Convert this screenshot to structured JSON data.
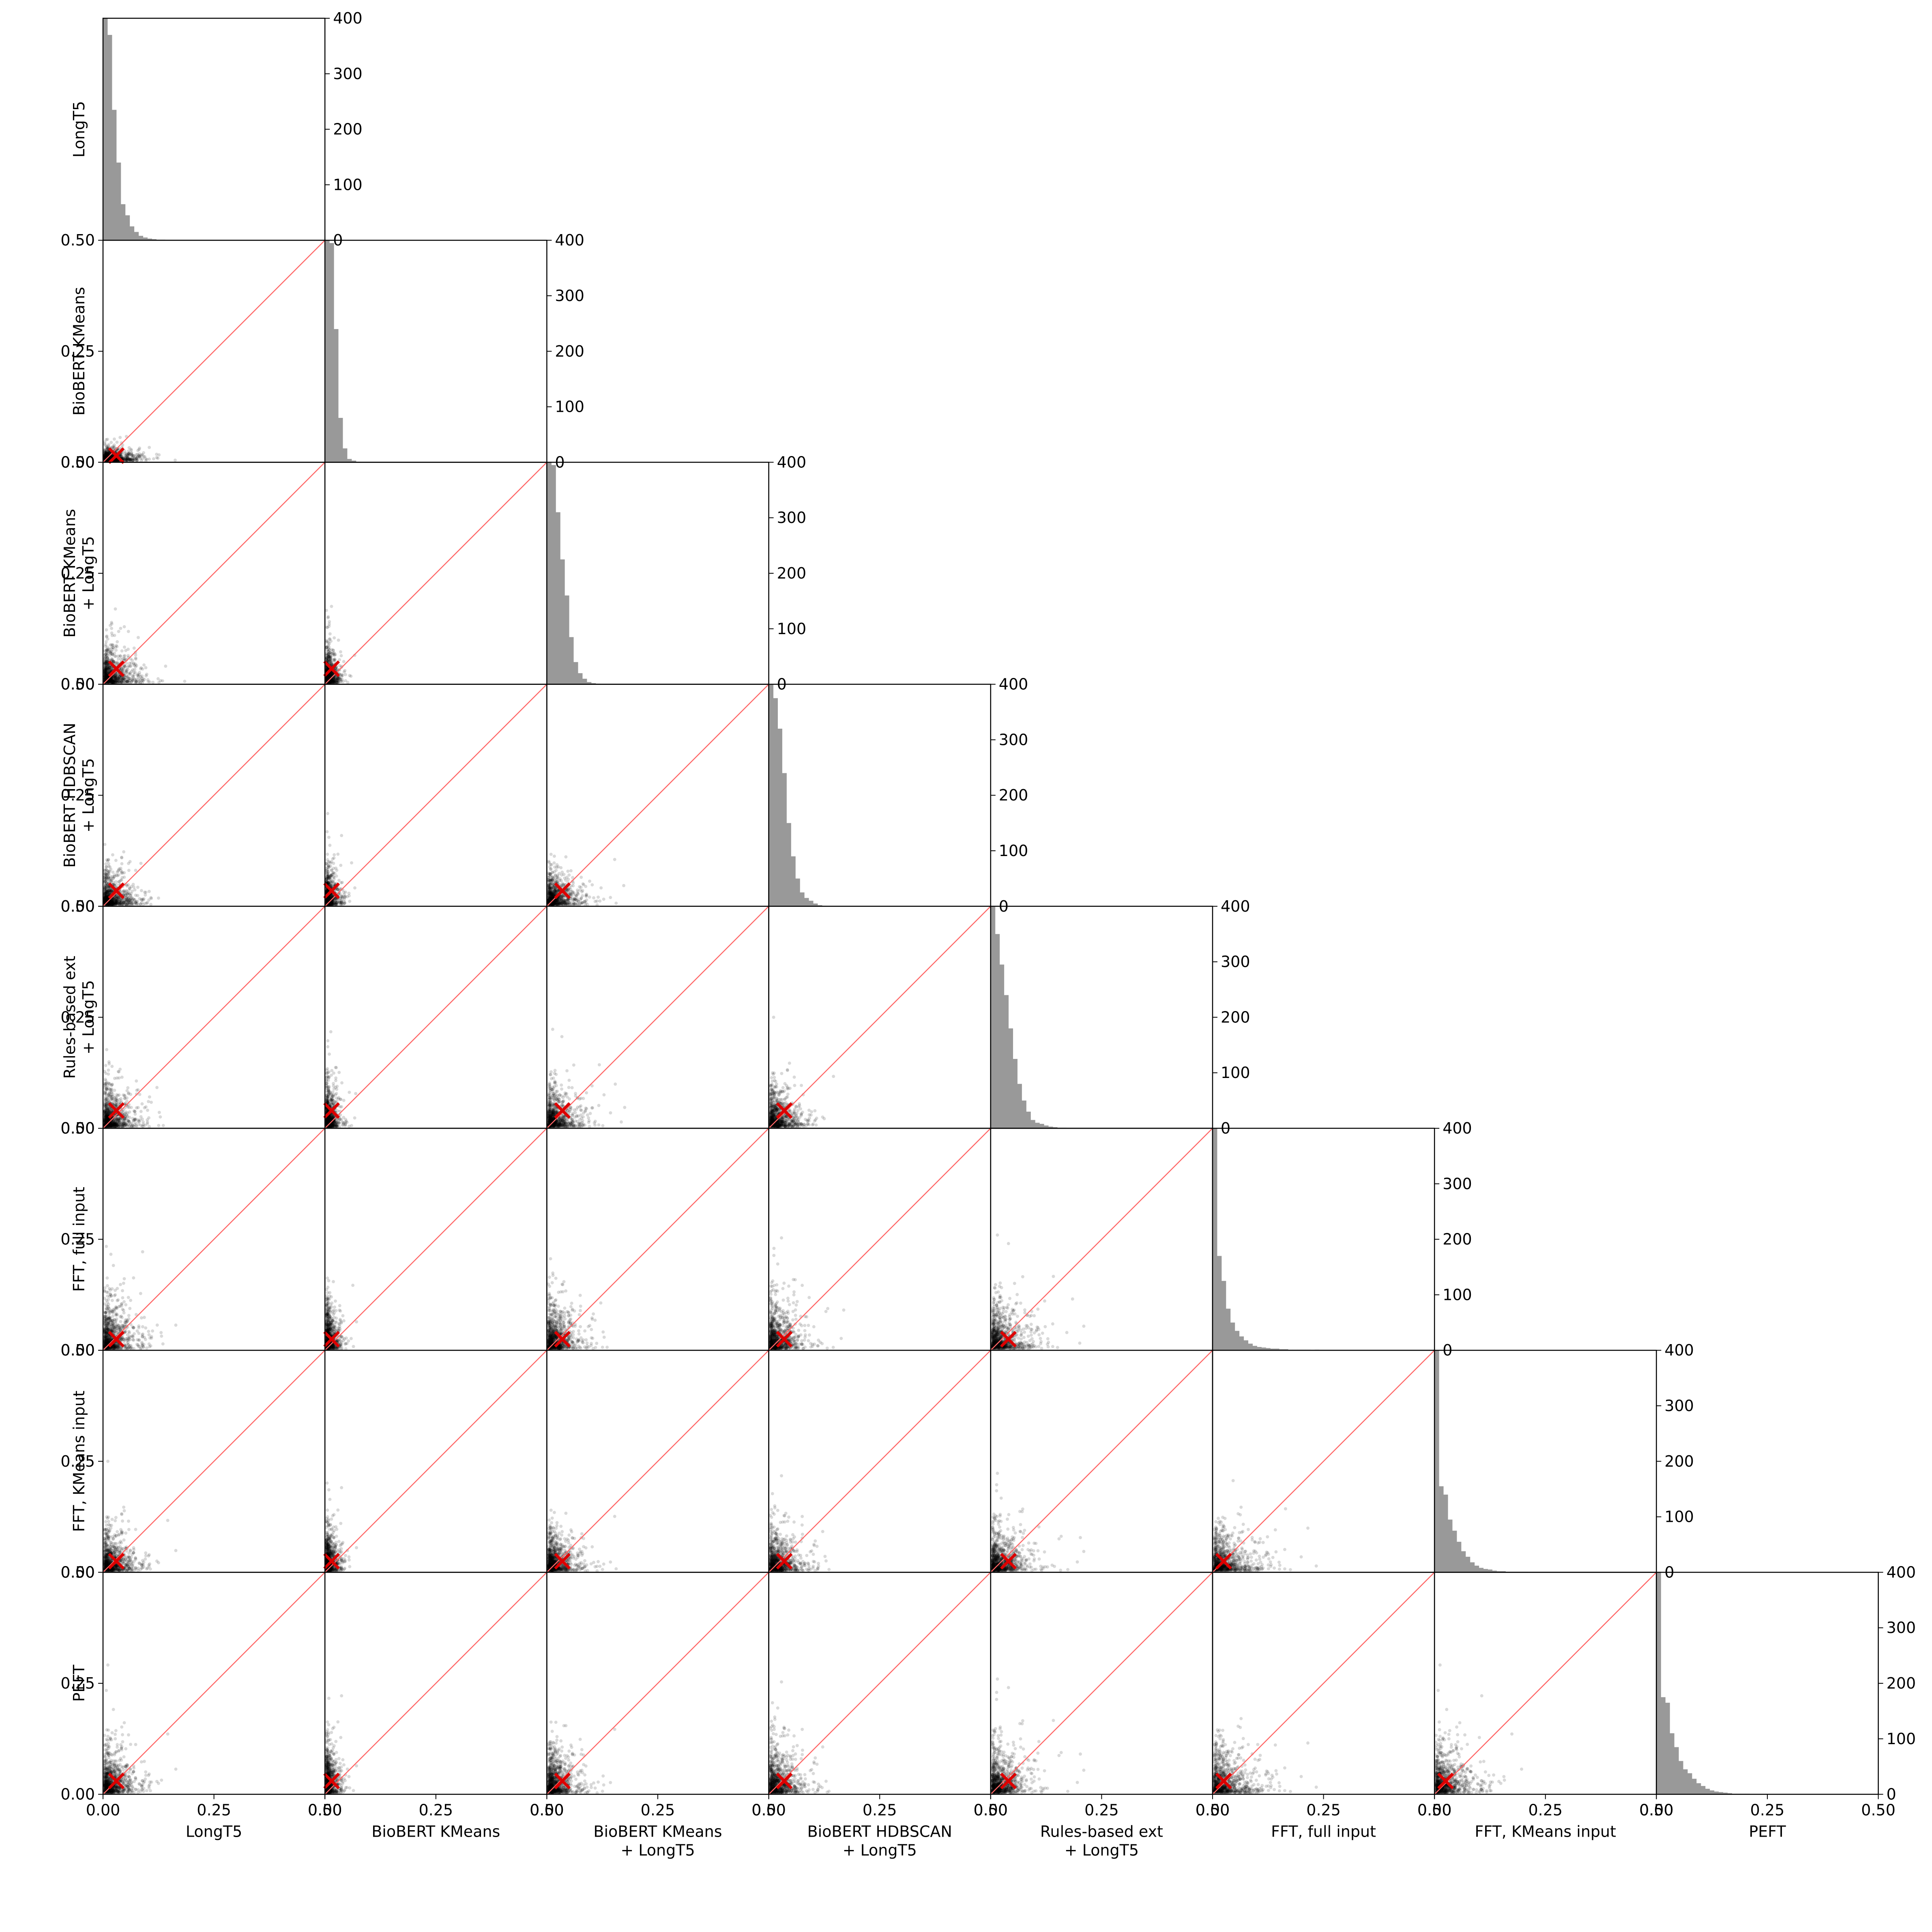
{
  "chart_data": {
    "type": "scatter",
    "layout": "lower-triangular pair plot: scatter panels below diagonal, histograms on diagonal",
    "variables": [
      "LongT5",
      "BioBERT KMeans",
      "BioBERT KMeans\n+ LongT5",
      "BioBERT HDBSCAN\n+ LongT5",
      "Rules-based ext\n+ LongT5",
      "FFT, full input",
      "FFT, KMeans input",
      "PEFT"
    ],
    "axis_range": [
      0,
      0.5
    ],
    "axis_ticks": [
      "0.00",
      "0.25",
      "0.50"
    ],
    "scatter": {
      "point_color": "#000000",
      "point_alpha": 0.15,
      "reference_line": {
        "from": [
          0,
          0
        ],
        "to": [
          0.5,
          0.5
        ],
        "color": "#ff6666"
      },
      "mean_marker": {
        "symbol": "x",
        "color": "#dd0000"
      }
    },
    "histogram": {
      "color": "#999999",
      "ylim": [
        0,
        400
      ],
      "y_ticks": [
        "0",
        "100",
        "200",
        "300",
        "400"
      ],
      "bin_width": 0.01,
      "series": [
        {
          "values": [
            400,
            370,
            235,
            140,
            65,
            45,
            25,
            15,
            8,
            5,
            3,
            2,
            1,
            1,
            0,
            0,
            0,
            0,
            0,
            0,
            0,
            0,
            0,
            0,
            0,
            0,
            0,
            0,
            0,
            0,
            0,
            0,
            0,
            0,
            0,
            0,
            0,
            0,
            0,
            0,
            0,
            0,
            0,
            0,
            0,
            0,
            0,
            0,
            0,
            0
          ]
        },
        {
          "values": [
            400,
            395,
            240,
            80,
            25,
            6,
            3,
            1,
            0,
            0,
            0,
            0,
            0,
            0,
            0,
            0,
            0,
            0,
            0,
            0,
            0,
            0,
            0,
            0,
            0,
            0,
            0,
            0,
            0,
            0,
            0,
            0,
            0,
            0,
            0,
            0,
            0,
            0,
            0,
            0,
            0,
            0,
            0,
            0,
            0,
            0,
            0,
            0,
            0,
            0
          ]
        },
        {
          "values": [
            400,
            395,
            310,
            225,
            160,
            85,
            40,
            20,
            10,
            4,
            2,
            1,
            0,
            0,
            0,
            0,
            0,
            0,
            0,
            0,
            0,
            0,
            0,
            0,
            0,
            0,
            0,
            0,
            0,
            0,
            0,
            0,
            0,
            0,
            0,
            0,
            0,
            0,
            0,
            0,
            0,
            0,
            0,
            0,
            0,
            0,
            0,
            0,
            0,
            0
          ]
        },
        {
          "values": [
            400,
            375,
            320,
            240,
            150,
            90,
            50,
            25,
            15,
            10,
            5,
            2,
            1,
            0,
            0,
            0,
            0,
            0,
            0,
            0,
            0,
            0,
            0,
            0,
            0,
            0,
            0,
            0,
            0,
            0,
            0,
            0,
            0,
            0,
            0,
            0,
            0,
            0,
            0,
            0,
            0,
            0,
            0,
            0,
            0,
            0,
            0,
            0,
            0,
            0
          ]
        },
        {
          "values": [
            400,
            350,
            295,
            240,
            180,
            125,
            80,
            50,
            30,
            15,
            10,
            8,
            5,
            3,
            2,
            1,
            1,
            0,
            0,
            0,
            0,
            0,
            0,
            0,
            0,
            0,
            0,
            0,
            0,
            0,
            0,
            0,
            0,
            0,
            0,
            0,
            0,
            0,
            0,
            0,
            0,
            0,
            0,
            0,
            0,
            0,
            0,
            0,
            0,
            0
          ]
        },
        {
          "values": [
            400,
            170,
            125,
            75,
            50,
            35,
            25,
            18,
            12,
            8,
            6,
            5,
            4,
            3,
            3,
            2,
            2,
            1,
            1,
            1,
            1,
            1,
            0,
            1,
            0,
            0,
            0,
            0,
            0,
            0,
            0,
            0,
            0,
            0,
            0,
            0,
            0,
            0,
            0,
            0,
            0,
            0,
            0,
            0,
            0,
            0,
            0,
            0,
            0,
            0
          ]
        },
        {
          "values": [
            400,
            155,
            140,
            95,
            75,
            55,
            38,
            28,
            18,
            12,
            8,
            6,
            5,
            3,
            2,
            2,
            1,
            1,
            1,
            1,
            1,
            0,
            0,
            0,
            0,
            0,
            0,
            0,
            0,
            0,
            0,
            0,
            0,
            0,
            0,
            0,
            0,
            0,
            0,
            0,
            0,
            0,
            0,
            0,
            0,
            0,
            0,
            0,
            0,
            0
          ]
        },
        {
          "values": [
            400,
            175,
            165,
            110,
            85,
            60,
            45,
            38,
            28,
            20,
            15,
            10,
            7,
            5,
            4,
            3,
            2,
            1,
            1,
            1,
            1,
            0,
            0,
            0,
            0,
            0,
            0,
            0,
            0,
            0,
            0,
            0,
            0,
            0,
            0,
            0,
            0,
            0,
            0,
            0,
            0,
            0,
            0,
            0,
            0,
            0,
            0,
            0,
            0,
            0
          ]
        }
      ]
    },
    "variable_stats": [
      {
        "mean": 0.03,
        "spread": 0.025
      },
      {
        "mean": 0.015,
        "spread": 0.01
      },
      {
        "mean": 0.035,
        "spread": 0.025
      },
      {
        "mean": 0.035,
        "spread": 0.025
      },
      {
        "mean": 0.04,
        "spread": 0.03
      },
      {
        "mean": 0.025,
        "spread": 0.035
      },
      {
        "mean": 0.025,
        "spread": 0.03
      },
      {
        "mean": 0.03,
        "spread": 0.035
      }
    ]
  }
}
